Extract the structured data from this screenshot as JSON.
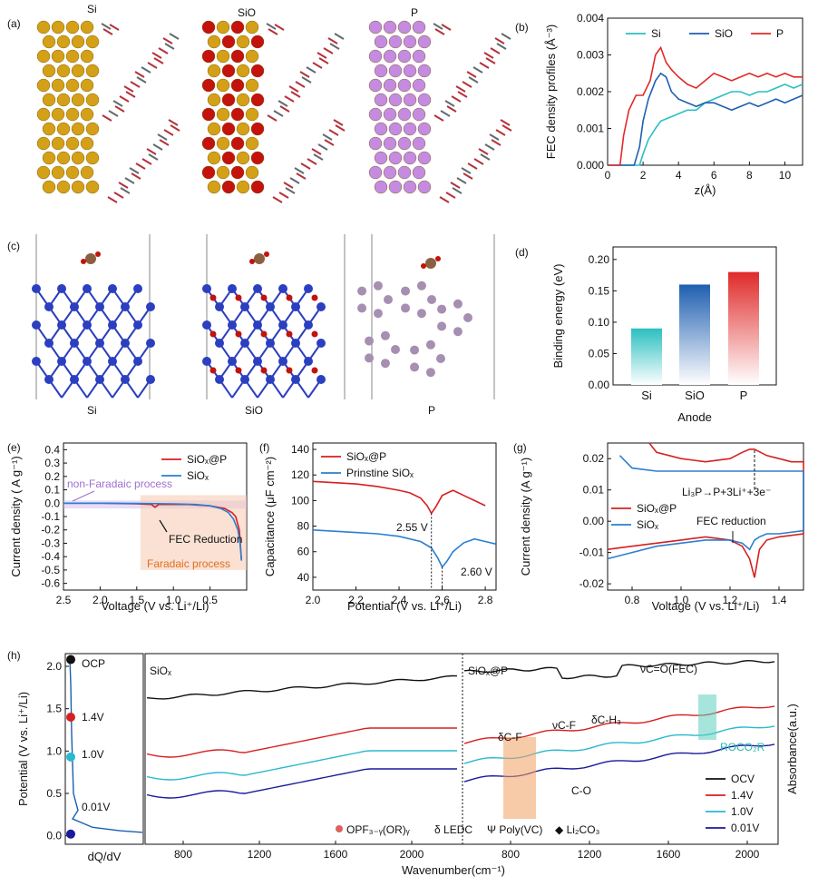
{
  "panels": {
    "a": {
      "label": "(a)",
      "titles": [
        "Si",
        "SiO",
        "P"
      ]
    },
    "b": {
      "label": "(b)"
    },
    "c": {
      "label": "(c)",
      "titles": [
        "Si",
        "SiO",
        "P"
      ]
    },
    "d": {
      "label": "(d)"
    },
    "e": {
      "label": "(e)",
      "annotations": {
        "nonfaradaic": "non-Faradaic process",
        "fec": "FEC Reduction",
        "faradaic": "Faradaic process"
      }
    },
    "f": {
      "label": "(f)",
      "annotations": {
        "v1": "2.55 V",
        "v2": "2.60 V"
      }
    },
    "g": {
      "label": "(g)",
      "annotations": {
        "reaction": "Li₃P→P+3Li⁺+3e⁻",
        "fec": "FEC reduction"
      }
    },
    "h": {
      "label": "(h)",
      "left_title": "SiOₓ",
      "right_title": "SiOₓ@P",
      "state_labels": [
        "OCP",
        "1.4V",
        "1.0V",
        "0.01V"
      ],
      "peak_labels": {
        "dcf": "δC-F",
        "vcf": "νC-F",
        "dch3": "δC-H₃",
        "vco": "νC=O(FEC)",
        "co": "C-O",
        "roco2r": "ROCO₂R"
      },
      "marker_legend": [
        "OPF₃₋ᵧ(OR)ᵧ",
        "δ LEDC",
        "Ψ Poly(VC)",
        "◆ Li₂CO₃"
      ]
    }
  },
  "colors": {
    "si": "#2bbfc0",
    "sio": "#1f5fb0",
    "p": "#e02a2a",
    "black": "#111111",
    "red": "#d62020",
    "cyan": "#2ab8d0",
    "navy": "#1a1a9c",
    "gold": "#d4a017",
    "purple": "#c58be0",
    "silicon_blue": "#2b3fbf",
    "phosphorus": "#a68fb0",
    "oxygen": "#c4120c"
  },
  "chart_data": [
    {
      "id": "b",
      "type": "line",
      "xlabel": "z(Å)",
      "ylabel": "FEC density profiles (Å⁻³)",
      "xlim": [
        0,
        11
      ],
      "ylim": [
        0,
        0.004
      ],
      "xticks": [
        0,
        2,
        4,
        6,
        8,
        10
      ],
      "yticks": [
        "0.000",
        "0.001",
        "0.002",
        "0.003",
        "0.004"
      ],
      "legend": "top-right",
      "series": [
        {
          "name": "Si",
          "color": "#2bbfc0",
          "x": [
            0,
            1.8,
            2.0,
            2.3,
            2.7,
            3.0,
            3.5,
            4.0,
            4.5,
            5.0,
            5.5,
            6.0,
            6.5,
            7.0,
            7.5,
            8.0,
            8.5,
            9.0,
            9.5,
            10.0,
            10.5,
            11.0
          ],
          "y": [
            0,
            0,
            0.0003,
            0.0007,
            0.001,
            0.0012,
            0.0013,
            0.0014,
            0.0015,
            0.0015,
            0.0017,
            0.0018,
            0.0019,
            0.002,
            0.002,
            0.0019,
            0.002,
            0.002,
            0.0021,
            0.0022,
            0.0021,
            0.0022
          ]
        },
        {
          "name": "SiO",
          "color": "#1f5fb0",
          "x": [
            0,
            1.5,
            1.8,
            2.0,
            2.3,
            2.7,
            3.0,
            3.3,
            3.6,
            4.0,
            4.5,
            5.0,
            5.5,
            6.0,
            6.5,
            7.0,
            7.5,
            8.0,
            8.5,
            9.0,
            9.5,
            10.0,
            10.5,
            11.0
          ],
          "y": [
            0,
            0,
            0.0005,
            0.0012,
            0.0018,
            0.0023,
            0.0025,
            0.0024,
            0.002,
            0.0018,
            0.0017,
            0.0016,
            0.0017,
            0.0017,
            0.0016,
            0.0015,
            0.0016,
            0.0017,
            0.0016,
            0.0017,
            0.0018,
            0.0017,
            0.0018,
            0.0019
          ]
        },
        {
          "name": "P",
          "color": "#e02a2a",
          "x": [
            0,
            0.7,
            0.9,
            1.2,
            1.6,
            2.0,
            2.4,
            2.7,
            3.0,
            3.3,
            3.6,
            4.0,
            4.5,
            5.0,
            5.5,
            6.0,
            6.5,
            7.0,
            7.5,
            8.0,
            8.5,
            9.0,
            9.5,
            10.0,
            10.5,
            11.0
          ],
          "y": [
            0,
            0,
            0.0008,
            0.0015,
            0.0019,
            0.0019,
            0.0023,
            0.003,
            0.0032,
            0.0028,
            0.0026,
            0.0024,
            0.0022,
            0.0021,
            0.0023,
            0.0025,
            0.0024,
            0.0023,
            0.0024,
            0.0025,
            0.0024,
            0.0025,
            0.0024,
            0.0025,
            0.0024,
            0.0024
          ]
        }
      ]
    },
    {
      "id": "d",
      "type": "bar",
      "xlabel": "Anode",
      "ylabel": "Binding energy (eV)",
      "ylim": [
        0,
        0.22
      ],
      "yticks": [
        "0.00",
        "0.05",
        "0.10",
        "0.15",
        "0.20"
      ],
      "categories": [
        "Si",
        "SiO",
        "P"
      ],
      "values": [
        0.09,
        0.16,
        0.18
      ]
    },
    {
      "id": "e",
      "type": "line",
      "xlabel": "Voltage (V vs. Li⁺/Li)",
      "ylabel": "Current density ( A g⁻¹)",
      "xlim": [
        2.5,
        0
      ],
      "ylim": [
        -0.65,
        0.45
      ],
      "xticks": [
        "2.5",
        "2.0",
        "1.5",
        "1.0",
        "0.5"
      ],
      "yticks": [
        "0.4",
        "0.3",
        "0.2",
        "0.1",
        "0.0",
        "-0.1",
        "-0.2",
        "-0.3",
        "-0.4",
        "-0.5",
        "-0.6"
      ],
      "legend": "top-right",
      "series": [
        {
          "name": "SiOₓ@P",
          "color": "#d62020",
          "x": [
            2.5,
            2.0,
            1.5,
            1.3,
            1.25,
            1.2,
            1.1,
            0.8,
            0.5,
            0.3,
            0.2,
            0.15,
            0.1,
            0.07
          ],
          "y": [
            0,
            0,
            -0.005,
            -0.01,
            -0.03,
            -0.01,
            -0.01,
            -0.01,
            -0.02,
            -0.04,
            -0.07,
            -0.1,
            -0.2,
            -0.43
          ]
        },
        {
          "name": "SiOₓ",
          "color": "#2a7fd0",
          "x": [
            2.5,
            2.0,
            1.5,
            1.0,
            0.7,
            0.5,
            0.35,
            0.25,
            0.18,
            0.12,
            0.09,
            0.07
          ],
          "y": [
            0,
            0,
            -0.002,
            -0.005,
            -0.01,
            -0.02,
            -0.04,
            -0.07,
            -0.12,
            -0.2,
            -0.3,
            -0.43
          ]
        }
      ]
    },
    {
      "id": "f",
      "type": "line",
      "xlabel": "Potential (V vs. Li⁺/Li)",
      "ylabel": "Capacitance (μF cm⁻²)",
      "xlim": [
        2.0,
        2.85
      ],
      "ylim": [
        30,
        145
      ],
      "xticks": [
        "2.0",
        "2.2",
        "2.4",
        "2.6",
        "2.8"
      ],
      "yticks": [
        "40",
        "60",
        "80",
        "100",
        "120",
        "140"
      ],
      "legend": "top-right",
      "series": [
        {
          "name": "SiOₓ@P",
          "color": "#d62020",
          "x": [
            2.0,
            2.1,
            2.2,
            2.3,
            2.4,
            2.45,
            2.5,
            2.53,
            2.55,
            2.57,
            2.6,
            2.65,
            2.7,
            2.75,
            2.8
          ],
          "y": [
            115,
            114,
            113,
            111,
            108,
            106,
            102,
            96,
            90,
            95,
            104,
            108,
            104,
            100,
            96
          ]
        },
        {
          "name": "Prinstine SiOₓ",
          "color": "#2a7fd0",
          "x": [
            2.0,
            2.1,
            2.2,
            2.3,
            2.4,
            2.5,
            2.55,
            2.58,
            2.6,
            2.62,
            2.65,
            2.7,
            2.75,
            2.8,
            2.85
          ],
          "y": [
            77,
            76,
            75,
            74,
            72,
            68,
            63,
            55,
            48,
            52,
            60,
            67,
            70,
            68,
            66
          ]
        }
      ]
    },
    {
      "id": "g",
      "type": "line",
      "xlabel": "Voltage (V  vs. Li⁺/Li)",
      "ylabel": "Current density (A g⁻¹)",
      "xlim": [
        0.7,
        1.5
      ],
      "ylim": [
        -0.022,
        0.025
      ],
      "xticks": [
        "0.8",
        "1.0",
        "1.2",
        "1.4"
      ],
      "yticks": [
        "0.02",
        "0.01",
        "0.00",
        "-0.01",
        "-0.02"
      ],
      "legend": "middle-left",
      "series": [
        {
          "name": "SiOₓ@P",
          "color": "#d62020",
          "x": [
            0.7,
            0.8,
            0.9,
            1.0,
            1.1,
            1.2,
            1.25,
            1.28,
            1.3,
            1.32,
            1.35,
            1.4,
            1.5,
            1.5,
            1.45,
            1.4,
            1.35,
            1.3,
            1.28,
            1.25,
            1.2,
            1.1,
            1.0,
            0.9,
            0.87
          ],
          "y": [
            -0.009,
            -0.008,
            -0.007,
            -0.006,
            -0.005,
            -0.006,
            -0.008,
            -0.012,
            -0.018,
            -0.009,
            -0.006,
            -0.005,
            -0.004,
            0.019,
            0.019,
            0.02,
            0.021,
            0.023,
            0.023,
            0.022,
            0.02,
            0.019,
            0.02,
            0.022,
            0.025
          ]
        },
        {
          "name": "SiOₓ",
          "color": "#2a7fd0",
          "x": [
            0.7,
            0.8,
            0.9,
            1.0,
            1.1,
            1.2,
            1.25,
            1.28,
            1.3,
            1.32,
            1.35,
            1.4,
            1.5,
            1.5,
            1.4,
            1.3,
            1.2,
            1.1,
            1.0,
            0.9,
            0.8,
            0.75
          ],
          "y": [
            -0.012,
            -0.01,
            -0.008,
            -0.007,
            -0.006,
            -0.006,
            -0.007,
            -0.009,
            -0.006,
            -0.005,
            -0.004,
            -0.004,
            -0.003,
            0.016,
            0.016,
            0.016,
            0.016,
            0.016,
            0.016,
            0.016,
            0.017,
            0.021
          ]
        }
      ]
    },
    {
      "id": "h",
      "type": "line",
      "xlabel": "Wavenumber(cm⁻¹)",
      "ylabel": "Absorbance(a.u.)",
      "left_ylabel": "Potential (V vs. Li⁺/Li)",
      "left_xlabel": "dQ/dV",
      "left_yticks": [
        "0.0",
        "0.5",
        "1.0",
        "1.5",
        "2.0"
      ],
      "xticks": [
        "800",
        "1200",
        "1600",
        "2000",
        "800",
        "1200",
        "1600",
        "2000"
      ],
      "legend": "bottom-right",
      "series": [
        {
          "name": "OCV",
          "color": "#111111"
        },
        {
          "name": "1.4V",
          "color": "#d62020"
        },
        {
          "name": "1.0V",
          "color": "#2ab8d0"
        },
        {
          "name": "0.01V",
          "color": "#1a1a9c"
        }
      ]
    }
  ]
}
